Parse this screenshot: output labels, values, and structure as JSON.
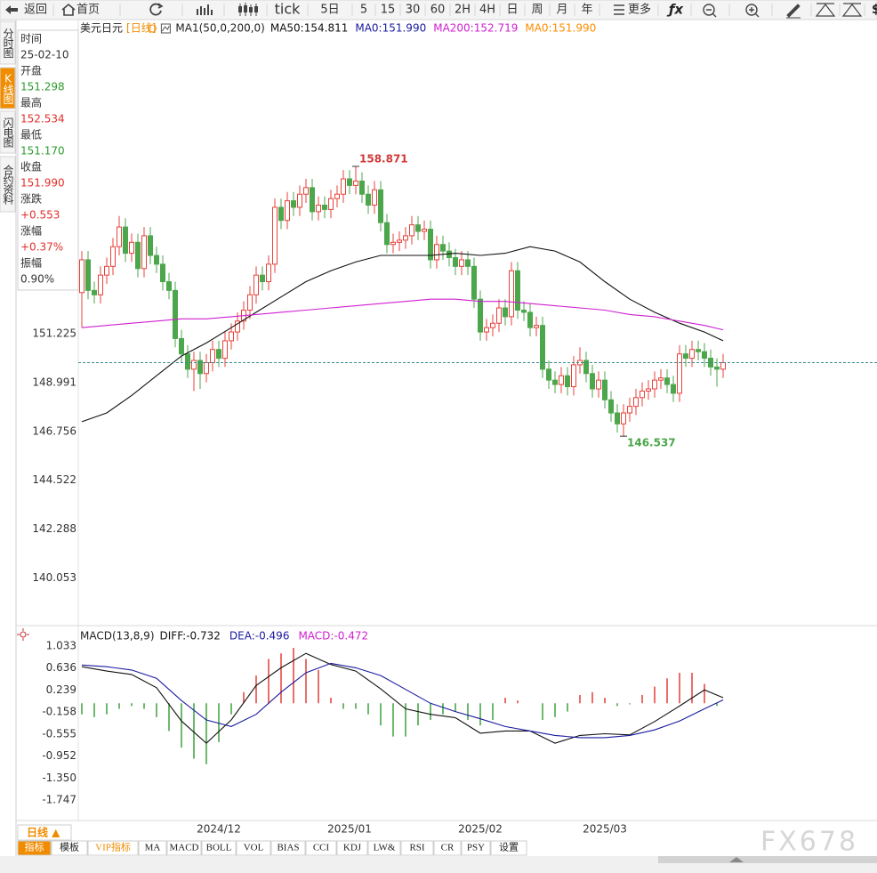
{
  "toolbar": {
    "items": [
      "返回",
      "首页",
      "tick",
      "5日",
      "5",
      "15",
      "30",
      "60",
      "2H",
      "4H",
      "日",
      "周",
      "月",
      "年",
      "更多"
    ]
  },
  "side_tabs": [
    "分时图",
    "K线图",
    "闪电图",
    "合约资料"
  ],
  "info_panel": [
    {
      "label": "时间",
      "value": "25-02-10",
      "color": "#333333"
    },
    {
      "label": "开盘",
      "value": "151.298",
      "color": "#2e9a2e"
    },
    {
      "label": "最高",
      "value": "152.534",
      "color": "#e0302a"
    },
    {
      "label": "最低",
      "value": "151.170",
      "color": "#2e9a2e"
    },
    {
      "label": "收盘",
      "value": "151.990",
      "color": "#e0302a"
    },
    {
      "label": "涨跌",
      "value": "+0.553",
      "color": "#e0302a"
    },
    {
      "label": "涨幅",
      "value": "+0.37%",
      "color": "#e0302a"
    },
    {
      "label": "振幅",
      "value": "0.90%",
      "color": "#333333"
    }
  ],
  "chart_data": [
    {
      "type": "candlestick",
      "title": "美元日元",
      "period": "[日线]",
      "indicator": "MA1(50,0,200,0)",
      "up_color": "#e8413b",
      "down_color": "#4ca64c",
      "last_line_color": "#3c8c8c",
      "open": [
        153.1,
        154.6,
        153.2,
        153.0,
        153.9,
        154.3,
        155.2,
        156.1,
        154.9,
        155.4,
        154.2,
        155.7,
        154.8,
        154.4,
        153.6,
        153.2,
        151.0,
        150.3,
        149.6,
        150.0,
        149.4,
        149.9,
        150.5,
        150.1,
        150.9,
        151.3,
        151.8,
        152.3,
        153.0,
        153.9,
        153.6,
        154.4,
        157.0,
        156.4,
        157.3,
        157.0,
        157.6,
        157.9,
        156.8,
        157.1,
        156.9,
        157.4,
        157.6,
        158.3,
        158.0,
        158.2,
        157.6,
        157.1,
        157.8,
        156.3,
        155.3,
        155.4,
        155.5,
        155.7,
        156.2,
        155.9,
        156.0,
        154.6,
        155.3,
        155.0,
        154.7,
        154.3,
        154.6,
        154.3,
        152.8,
        151.3,
        151.5,
        151.7,
        152.4,
        152.0,
        154.1,
        152.3,
        152.2,
        151.5,
        151.6,
        149.6,
        149.1,
        148.9,
        149.3,
        148.8,
        149.8,
        150.0,
        149.4,
        148.7,
        149.1,
        148.2,
        147.6,
        147.1,
        147.6,
        147.9,
        148.3,
        148.6,
        148.7,
        149.1,
        149.2,
        148.9,
        148.5,
        150.3,
        150.1,
        150.5,
        150.4,
        150.1,
        149.7,
        149.6
      ],
      "high": [
        155.0,
        155.0,
        153.6,
        154.3,
        154.7,
        155.6,
        156.6,
        156.5,
        155.8,
        155.8,
        156.1,
        156.1,
        155.2,
        154.8,
        154.0,
        153.6,
        151.4,
        150.7,
        150.4,
        150.4,
        150.3,
        150.9,
        150.9,
        151.3,
        151.7,
        152.2,
        152.7,
        153.4,
        154.3,
        154.3,
        154.8,
        157.4,
        157.4,
        157.7,
        157.7,
        158.0,
        158.3,
        158.3,
        157.5,
        157.5,
        157.8,
        158.0,
        158.7,
        158.7,
        158.871,
        158.6,
        158.0,
        158.2,
        158.2,
        156.7,
        155.8,
        155.9,
        156.1,
        156.6,
        156.6,
        156.4,
        156.4,
        155.7,
        155.7,
        155.4,
        155.1,
        155.0,
        155.0,
        154.7,
        153.2,
        151.9,
        152.1,
        152.8,
        152.8,
        154.5,
        154.5,
        152.7,
        152.6,
        152.0,
        152.0,
        150.0,
        149.5,
        149.7,
        149.7,
        150.2,
        150.6,
        150.4,
        149.8,
        149.5,
        149.5,
        148.6,
        148.0,
        148.0,
        148.3,
        148.7,
        149.0,
        149.1,
        149.5,
        149.6,
        149.6,
        149.3,
        150.7,
        150.7,
        150.9,
        150.9,
        150.8,
        150.5,
        150.1,
        150.3
      ],
      "low": [
        151.5,
        152.8,
        152.6,
        152.6,
        153.5,
        153.9,
        154.8,
        154.5,
        154.5,
        153.8,
        153.8,
        154.4,
        154.0,
        153.2,
        152.8,
        150.6,
        149.9,
        149.2,
        148.6,
        148.7,
        149.0,
        149.5,
        149.7,
        149.7,
        150.5,
        150.9,
        151.4,
        151.9,
        152.6,
        153.2,
        153.2,
        154.0,
        156.0,
        156.0,
        156.6,
        156.6,
        157.2,
        156.4,
        156.4,
        156.5,
        156.5,
        157.0,
        157.2,
        157.6,
        157.6,
        157.2,
        156.7,
        156.7,
        155.9,
        154.9,
        154.9,
        155.0,
        155.1,
        155.3,
        155.5,
        155.5,
        154.2,
        154.2,
        154.6,
        154.3,
        153.9,
        153.9,
        153.9,
        152.4,
        150.9,
        150.9,
        151.1,
        151.3,
        151.6,
        151.6,
        151.9,
        151.8,
        151.1,
        151.1,
        149.2,
        148.7,
        148.5,
        148.5,
        148.4,
        148.4,
        149.4,
        149.0,
        148.3,
        148.3,
        147.8,
        147.2,
        146.7,
        146.537,
        147.2,
        147.5,
        147.9,
        148.2,
        148.3,
        148.7,
        148.5,
        148.1,
        148.1,
        149.7,
        149.7,
        150.0,
        149.7,
        149.3,
        148.8,
        149.2
      ],
      "close": [
        154.6,
        153.2,
        153.0,
        153.9,
        154.3,
        155.2,
        156.1,
        154.9,
        155.4,
        154.2,
        155.7,
        154.8,
        154.4,
        153.6,
        153.2,
        151.0,
        150.3,
        149.6,
        150.0,
        149.4,
        149.9,
        150.5,
        150.1,
        150.9,
        151.3,
        151.8,
        152.3,
        153.0,
        153.9,
        153.6,
        154.4,
        157.0,
        156.4,
        157.3,
        157.0,
        157.6,
        157.9,
        156.8,
        157.1,
        156.9,
        157.4,
        157.6,
        158.3,
        158.0,
        158.2,
        157.6,
        157.1,
        157.8,
        156.3,
        155.3,
        155.4,
        155.5,
        155.7,
        156.2,
        155.9,
        156.0,
        154.6,
        155.3,
        155.0,
        154.7,
        154.3,
        154.6,
        154.3,
        152.8,
        151.3,
        151.5,
        151.7,
        152.4,
        152.0,
        154.1,
        152.3,
        152.2,
        151.5,
        151.6,
        149.6,
        149.1,
        148.9,
        149.3,
        148.8,
        149.8,
        150.0,
        149.4,
        148.7,
        149.1,
        148.2,
        147.6,
        147.1,
        147.6,
        147.9,
        148.3,
        148.6,
        148.7,
        149.1,
        149.2,
        148.9,
        148.5,
        150.3,
        150.1,
        150.5,
        150.4,
        150.1,
        149.7,
        149.6,
        149.9
      ],
      "series": [
        {
          "name": "MA50:154.811",
          "color": "#111111",
          "x": [
            0,
            4,
            8,
            12,
            16,
            20,
            24,
            28,
            32,
            36,
            40,
            44,
            48,
            52,
            56,
            60,
            64,
            68,
            72,
            76,
            80,
            84,
            88,
            92,
            96,
            100,
            103
          ],
          "values": [
            147.2,
            147.6,
            148.4,
            149.3,
            150.2,
            150.8,
            151.5,
            152.2,
            152.9,
            153.6,
            154.1,
            154.5,
            154.8,
            154.8,
            154.8,
            154.9,
            154.8,
            154.9,
            155.2,
            155.0,
            154.5,
            153.6,
            152.8,
            152.2,
            151.7,
            151.3,
            150.9
          ]
        },
        {
          "name": "MA0:151.990",
          "color": "#1a1aa0"
        },
        {
          "name": "MA200:152.719",
          "color": "#d020d0",
          "x": [
            0,
            4,
            8,
            12,
            16,
            20,
            24,
            28,
            32,
            36,
            40,
            44,
            48,
            52,
            56,
            60,
            64,
            68,
            72,
            76,
            80,
            84,
            88,
            92,
            96,
            100,
            103
          ],
          "values": [
            151.5,
            151.6,
            151.7,
            151.8,
            151.9,
            151.9,
            152.0,
            152.1,
            152.2,
            152.3,
            152.4,
            152.5,
            152.6,
            152.7,
            152.8,
            152.8,
            152.7,
            152.7,
            152.6,
            152.5,
            152.4,
            152.3,
            152.1,
            152.0,
            151.8,
            151.6,
            151.4
          ]
        },
        {
          "name": "MA0:151.990",
          "color": "#ff8c00"
        }
      ],
      "xlim": [
        0,
        128
      ],
      "xticks": [
        {
          "value": 22,
          "label": "2024/12"
        },
        {
          "value": 43,
          "label": "2025/01"
        },
        {
          "value": 64,
          "label": "2025/02"
        },
        {
          "value": 84,
          "label": "2025/03"
        }
      ],
      "ylim": [
        138.0,
        164.85
      ],
      "yticks": [
        140.053,
        142.288,
        144.522,
        146.756,
        148.991,
        151.225
      ],
      "grid": false
    },
    {
      "type": "macd",
      "title": "MACD(13,8,9)",
      "series": [
        {
          "name": "DIFF:-0.732",
          "color": "#111111",
          "x": [
            0,
            4,
            8,
            12,
            16,
            20,
            24,
            28,
            32,
            36,
            40,
            44,
            48,
            52,
            56,
            60,
            64,
            68,
            72,
            76,
            80,
            84,
            88,
            92,
            96,
            100,
            103
          ],
          "values": [
            0.66,
            0.58,
            0.52,
            0.28,
            -0.32,
            -0.72,
            -0.3,
            0.32,
            0.64,
            0.9,
            0.7,
            0.58,
            0.26,
            -0.1,
            -0.2,
            -0.26,
            -0.54,
            -0.5,
            -0.5,
            -0.72,
            -0.58,
            -0.55,
            -0.57,
            -0.33,
            -0.05,
            0.24,
            0.1
          ]
        },
        {
          "name": "DEA:-0.496",
          "color": "#1a1aa0",
          "x": [
            0,
            4,
            8,
            12,
            16,
            20,
            24,
            28,
            32,
            36,
            40,
            44,
            48,
            52,
            56,
            60,
            64,
            68,
            72,
            76,
            80,
            84,
            88,
            92,
            96,
            100,
            103
          ],
          "values": [
            0.69,
            0.66,
            0.6,
            0.45,
            0.05,
            -0.3,
            -0.42,
            -0.2,
            0.2,
            0.55,
            0.72,
            0.64,
            0.5,
            0.25,
            0.0,
            -0.15,
            -0.28,
            -0.42,
            -0.5,
            -0.58,
            -0.62,
            -0.62,
            -0.58,
            -0.48,
            -0.32,
            -0.1,
            0.06
          ]
        },
        {
          "name": "MACD:-0.472",
          "color": "#d020d0",
          "type": "bar",
          "up_color": "#e0302a",
          "down_color": "#2e9a2e",
          "x": [
            0,
            2,
            4,
            6,
            8,
            10,
            12,
            14,
            16,
            18,
            20,
            22,
            24,
            26,
            28,
            30,
            32,
            34,
            36,
            38,
            40,
            42,
            44,
            46,
            48,
            50,
            52,
            54,
            56,
            58,
            60,
            62,
            64,
            66,
            68,
            70,
            72,
            74,
            76,
            78,
            80,
            82,
            84,
            86,
            88,
            90,
            92,
            94,
            96,
            98,
            100,
            102
          ],
          "values": [
            -0.2,
            -0.25,
            -0.2,
            -0.1,
            -0.05,
            -0.1,
            -0.25,
            -0.5,
            -0.8,
            -1.0,
            -1.1,
            -0.7,
            -0.2,
            0.2,
            0.5,
            0.8,
            0.9,
            1.0,
            0.8,
            0.6,
            0.1,
            -0.1,
            -0.1,
            -0.2,
            -0.4,
            -0.6,
            -0.6,
            -0.4,
            -0.3,
            -0.2,
            -0.15,
            -0.3,
            -0.4,
            -0.3,
            0.1,
            0.05,
            0.0,
            -0.3,
            -0.25,
            -0.15,
            0.15,
            0.2,
            0.1,
            -0.05,
            -0.02,
            0.15,
            0.3,
            0.45,
            0.55,
            0.55,
            0.35,
            -0.05
          ]
        }
      ],
      "xlim": [
        0,
        128
      ],
      "ylim": [
        -2.083,
        1.353
      ],
      "yticks": [
        1.033,
        0.636,
        0.239,
        -0.158,
        -0.555,
        -0.952,
        {
          "value": -1.35,
          "label": "-1.350"
        },
        -1.747
      ]
    }
  ],
  "bottom_tabs": {
    "period": "日线 ▲",
    "items": [
      "指标",
      "模板",
      "VIP指标",
      "MA",
      "MACD",
      "BOLL",
      "VOL",
      "BIAS",
      "CCI",
      "KDJ",
      "LW&",
      "RSI",
      "CR",
      "PSY",
      "设置"
    ]
  },
  "watermark": "FX678"
}
